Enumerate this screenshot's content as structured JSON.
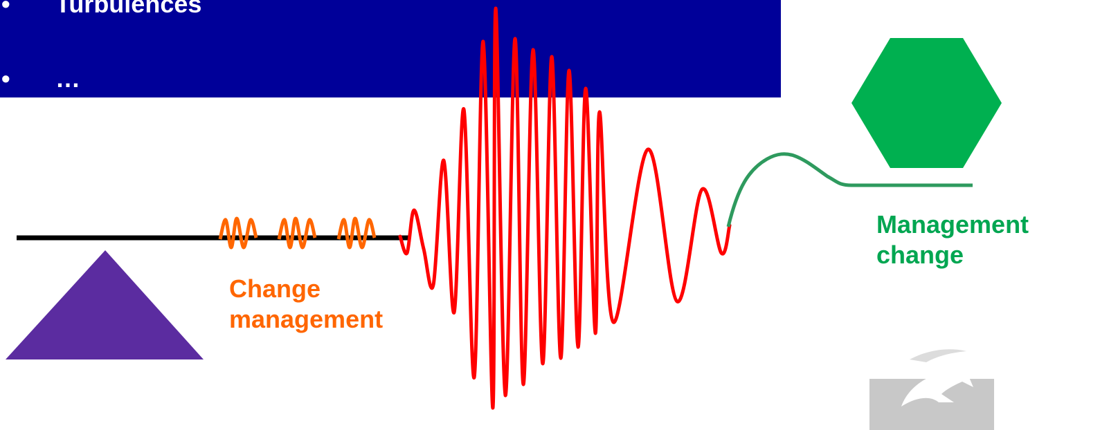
{
  "banner": {
    "bullets": [
      {
        "marker": "•",
        "text": "Turbulences"
      },
      {
        "marker": "•",
        "text": "…"
      }
    ]
  },
  "labels": {
    "change_management": "Change\nmanagement",
    "management_change": "Management\nchange"
  },
  "colors": {
    "banner": "#000099",
    "triangle": "#5b2ca0",
    "hexagon": "#00b050",
    "change_wave": "#ff6600",
    "turbulence_wave": "#ff0000",
    "management_curve": "#2e9a5e",
    "baseline": "#000000"
  },
  "icons": {
    "triangle": "purple-triangle",
    "hexagon": "green-hexagon",
    "logo": "dolphin-logo"
  }
}
